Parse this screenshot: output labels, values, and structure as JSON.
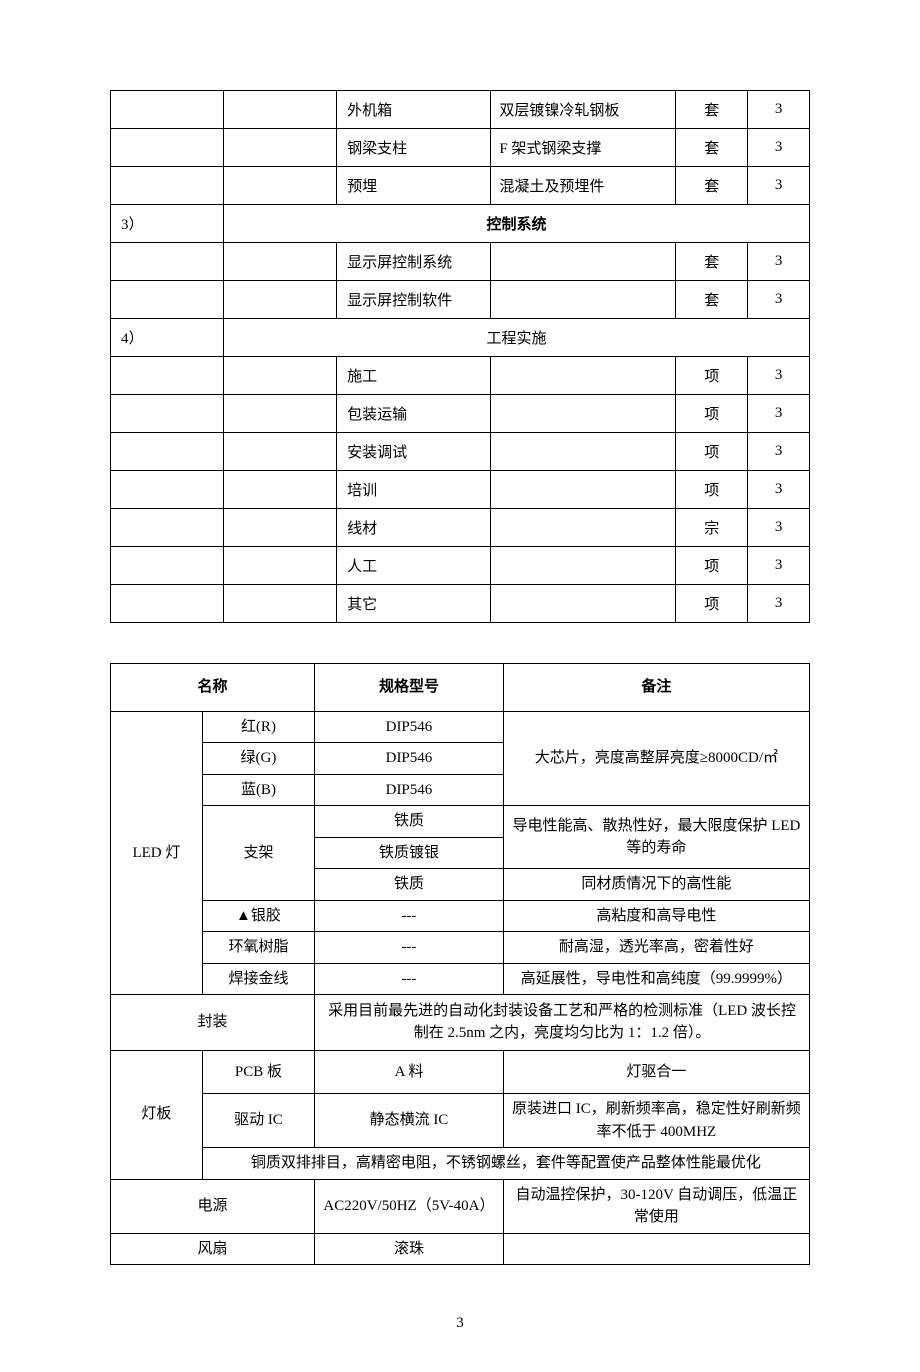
{
  "table1": {
    "rows": [
      {
        "type": "data",
        "c1": "",
        "c2": "",
        "c3": "外机箱",
        "c4": "双层镀镍冷轧钢板",
        "c5": "套",
        "c6": "3"
      },
      {
        "type": "data",
        "c1": "",
        "c2": "",
        "c3": "钢梁支柱",
        "c4": "F 架式钢梁支撑",
        "c5": "套",
        "c6": "3"
      },
      {
        "type": "data",
        "c1": "",
        "c2": "",
        "c3": "预埋",
        "c4": "混凝土及预埋件",
        "c5": "套",
        "c6": "3"
      },
      {
        "type": "section",
        "num": "3）",
        "label": "控制系统",
        "bold": true
      },
      {
        "type": "data",
        "c1": "",
        "c2": "",
        "c3": "显示屏控制系统",
        "c4": "",
        "c5": "套",
        "c6": "3"
      },
      {
        "type": "data",
        "c1": "",
        "c2": "",
        "c3": "显示屏控制软件",
        "c4": "",
        "c5": "套",
        "c6": "3"
      },
      {
        "type": "section",
        "num": "4）",
        "label": "工程实施",
        "bold": false
      },
      {
        "type": "data",
        "c1": "",
        "c2": "",
        "c3": "施工",
        "c4": "",
        "c5": "项",
        "c6": "3"
      },
      {
        "type": "data",
        "c1": "",
        "c2": "",
        "c3": "包装运输",
        "c4": "",
        "c5": "项",
        "c6": "3"
      },
      {
        "type": "data",
        "c1": "",
        "c2": "",
        "c3": "安装调试",
        "c4": "",
        "c5": "项",
        "c6": "3"
      },
      {
        "type": "data",
        "c1": "",
        "c2": "",
        "c3": "培训",
        "c4": "",
        "c5": "项",
        "c6": "3"
      },
      {
        "type": "data",
        "c1": "",
        "c2": "",
        "c3": "线材",
        "c4": "",
        "c5": "宗",
        "c6": "3"
      },
      {
        "type": "data",
        "c1": "",
        "c2": "",
        "c3": "人工",
        "c4": "",
        "c5": "项",
        "c6": "3"
      },
      {
        "type": "data",
        "c1": "",
        "c2": "",
        "c3": "其它",
        "c4": "",
        "c5": "项",
        "c6": "3"
      }
    ]
  },
  "table2": {
    "headers": {
      "name": "名称",
      "spec": "规格型号",
      "note": "备注"
    },
    "led_label": "LED 灯",
    "led_rgb_note": "大芯片，亮度高整屏亮度≥8000CD/㎡",
    "rows_rgb": [
      {
        "name": "红(R)",
        "spec": "DIP546"
      },
      {
        "name": "绿(G)",
        "spec": "DIP546"
      },
      {
        "name": "蓝(B)",
        "spec": "DIP546"
      }
    ],
    "bracket": {
      "name": "支架",
      "spec1": "铁质",
      "spec2": "铁质镀银",
      "spec3": "铁质",
      "note12": "导电性能高、散热性好，最大限度保护 LED 等的寿命",
      "note3": "同材质情况下的高性能"
    },
    "silver": {
      "name": "▲银胶",
      "spec": "---",
      "note": "高粘度和高导电性"
    },
    "epoxy": {
      "name": "环氧树脂",
      "spec": "---",
      "note": "耐高湿，透光率高，密着性好"
    },
    "wire": {
      "name": "焊接金线",
      "spec": "---",
      "note": "高延展性，导电性和高纯度（99.9999%）"
    },
    "pack": {
      "name": "封装",
      "note": "采用目前最先进的自动化封装设备工艺和严格的检测标准（LED 波长控制在 2.5nm 之内，亮度均匀比为 1：1.2 倍）。"
    },
    "board_label": "灯板",
    "pcb": {
      "name": "PCB 板",
      "spec": "A 料",
      "note": "灯驱合一"
    },
    "ic": {
      "name": "驱动 IC",
      "spec": "静态横流 IC",
      "note": "原装进口 IC，刷新频率高，稳定性好刷新频率不低于 400MHZ"
    },
    "board_note": "铜质双排排目，高精密电阻，不锈钢螺丝，套件等配置使产品整体性能最优化",
    "power": {
      "name": "电源",
      "spec": "AC220V/50HZ（5V-40A）",
      "note": "自动温控保护，30-120V 自动调压，低温正常使用"
    },
    "fan": {
      "name": "风扇",
      "spec": "滚珠",
      "note": ""
    }
  },
  "page_number": "3"
}
